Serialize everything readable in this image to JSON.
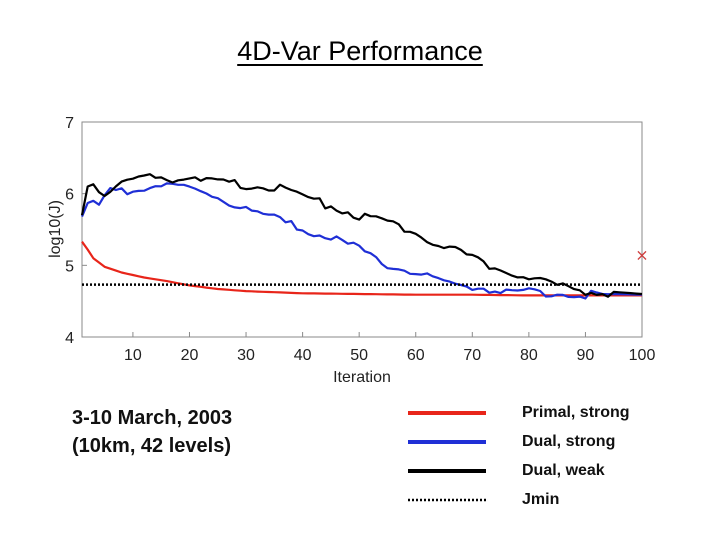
{
  "chart_data": {
    "type": "line",
    "title": "4D-Var Performance",
    "xlabel": "Iteration",
    "ylabel": "log10(J)",
    "xlim": [
      1,
      100
    ],
    "ylim": [
      4,
      7
    ],
    "xticks": [
      10,
      20,
      30,
      40,
      50,
      60,
      70,
      80,
      90,
      100
    ],
    "yticks": [
      4,
      5,
      6,
      7
    ],
    "series": [
      {
        "name": "Primal, strong",
        "color": "#e8251a",
        "x": [
          1,
          2,
          3,
          5,
          8,
          12,
          16,
          20,
          25,
          30,
          40,
          50,
          60,
          70,
          80,
          90,
          100
        ],
        "y": [
          5.33,
          5.22,
          5.1,
          4.98,
          4.9,
          4.83,
          4.78,
          4.72,
          4.67,
          4.64,
          4.61,
          4.6,
          4.59,
          4.59,
          4.58,
          4.58,
          4.58
        ]
      },
      {
        "name": "Dual, strong",
        "color": "#1f2fd6",
        "x": [
          1,
          2,
          3,
          4,
          6,
          8,
          10,
          12,
          14,
          16,
          18,
          20,
          22,
          25,
          30,
          35,
          40,
          45,
          50,
          55,
          60,
          65,
          70,
          75,
          80,
          85,
          90,
          95,
          100
        ],
        "y": [
          5.68,
          5.87,
          5.9,
          5.87,
          6.05,
          6.05,
          6.1,
          6.13,
          6.15,
          6.18,
          6.15,
          6.09,
          6.03,
          5.97,
          5.85,
          5.68,
          5.53,
          5.43,
          5.25,
          5.05,
          4.92,
          4.79,
          4.73,
          4.69,
          4.66,
          4.64,
          4.62,
          4.6,
          4.59
        ]
      },
      {
        "name": "Dual, weak",
        "color": "#000000",
        "x": [
          1,
          2,
          3,
          5,
          7,
          10,
          12,
          14,
          16,
          18,
          20,
          22,
          25,
          30,
          35,
          40,
          45,
          50,
          55,
          60,
          65,
          70,
          75,
          80,
          85,
          88,
          90,
          95,
          100
        ],
        "y": [
          5.7,
          6.1,
          6.13,
          6.05,
          6.13,
          6.22,
          6.27,
          6.28,
          6.27,
          6.22,
          6.26,
          6.2,
          6.2,
          6.14,
          6.13,
          5.98,
          5.86,
          5.72,
          5.62,
          5.48,
          5.3,
          5.12,
          4.98,
          4.86,
          4.74,
          4.7,
          4.67,
          4.63,
          4.6
        ]
      },
      {
        "name": "Jmin",
        "color": "#000000",
        "style": "dotted",
        "x": [
          1,
          100
        ],
        "y": [
          4.73,
          4.73
        ]
      }
    ],
    "annotations": [
      {
        "text": "×",
        "x": 100,
        "y": 5.15,
        "color": "#d04040"
      }
    ]
  },
  "caption": {
    "line1": "3-10 March, 2003",
    "line2": "(10km, 42 levels)"
  },
  "legend": [
    {
      "label": "Primal, strong",
      "color": "#e8251a",
      "style": "solid"
    },
    {
      "label": "Dual, strong",
      "color": "#1f2fd6",
      "style": "solid"
    },
    {
      "label": "Dual, weak",
      "color": "#000000",
      "style": "solid"
    },
    {
      "label": "Jmin",
      "color": "#000000",
      "style": "dotted"
    }
  ]
}
